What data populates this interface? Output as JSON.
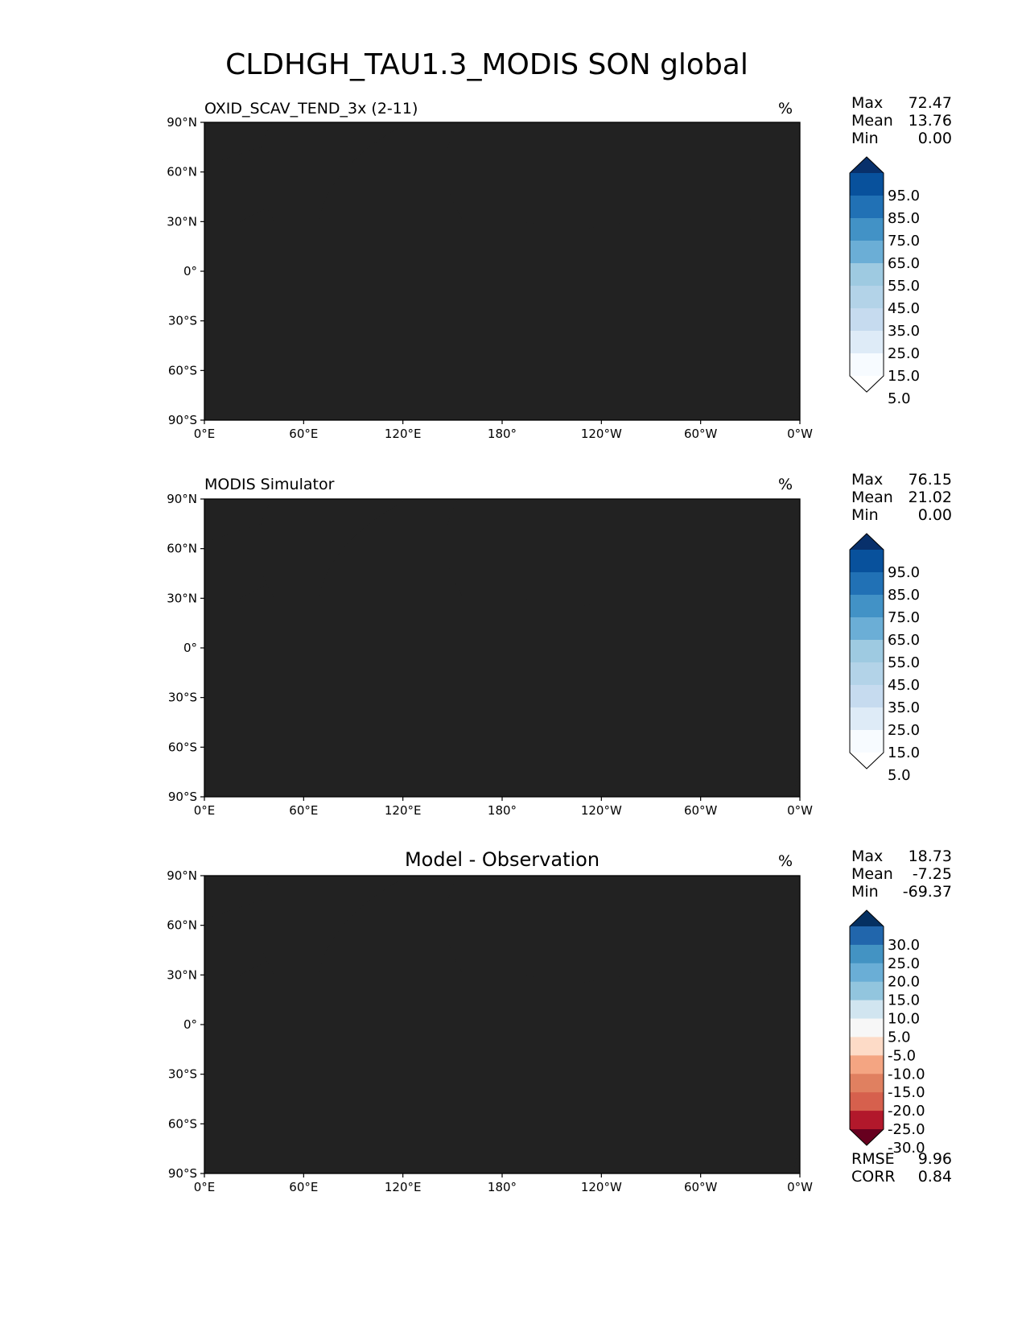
{
  "figure_title": "CLDHGH_TAU1.3_MODIS SON global",
  "lon_ticks": [
    "0°E",
    "60°E",
    "120°E",
    "180°",
    "120°W",
    "60°W",
    "0°W"
  ],
  "lat_ticks": [
    "90°N",
    "60°N",
    "30°N",
    "0°",
    "30°S",
    "60°S",
    "90°S"
  ],
  "panels": [
    {
      "title": "OXID_SCAV_TEND_3x (2-11)",
      "units": "%",
      "stats": [
        {
          "label": "Max",
          "value": "72.47"
        },
        {
          "label": "Mean",
          "value": "13.76"
        },
        {
          "label": "Min",
          "value": "0.00"
        }
      ],
      "colorbar": {
        "labels": [
          "95.0",
          "85.0",
          "75.0",
          "65.0",
          "55.0",
          "45.0",
          "35.0",
          "25.0",
          "15.0",
          "5.0"
        ],
        "colors": [
          "#08306b",
          "#08519c",
          "#2171b5",
          "#4292c6",
          "#6baed6",
          "#9ecae1",
          "#b3d3e8",
          "#c6dbef",
          "#deebf7",
          "#f7fbff",
          "#ffffff"
        ]
      }
    },
    {
      "title": "MODIS Simulator",
      "units": "%",
      "stats": [
        {
          "label": "Max",
          "value": "76.15"
        },
        {
          "label": "Mean",
          "value": "21.02"
        },
        {
          "label": "Min",
          "value": "0.00"
        }
      ],
      "colorbar": {
        "labels": [
          "95.0",
          "85.0",
          "75.0",
          "65.0",
          "55.0",
          "45.0",
          "35.0",
          "25.0",
          "15.0",
          "5.0"
        ],
        "colors": [
          "#08306b",
          "#08519c",
          "#2171b5",
          "#4292c6",
          "#6baed6",
          "#9ecae1",
          "#b3d3e8",
          "#c6dbef",
          "#deebf7",
          "#f7fbff",
          "#ffffff"
        ]
      }
    },
    {
      "title": "Model - Observation",
      "units": "%",
      "stats": [
        {
          "label": "Max",
          "value": "18.73"
        },
        {
          "label": "Mean",
          "value": "-7.25"
        },
        {
          "label": "Min",
          "value": "-69.37"
        }
      ],
      "colorbar": {
        "labels": [
          "30.0",
          "25.0",
          "20.0",
          "15.0",
          "10.0",
          "5.0",
          "-5.0",
          "-10.0",
          "-15.0",
          "-20.0",
          "-25.0",
          "-30.0"
        ],
        "colors": [
          "#053061",
          "#2166ac",
          "#4393c3",
          "#6aaed6",
          "#92c5de",
          "#d1e5f0",
          "#f7f7f7",
          "#fddbc7",
          "#f4a582",
          "#e08060",
          "#d6604d",
          "#b2182b",
          "#67001f"
        ]
      },
      "metrics": [
        {
          "label": "RMSE",
          "value": "9.96"
        },
        {
          "label": "CORR",
          "value": "0.84"
        }
      ]
    }
  ]
}
